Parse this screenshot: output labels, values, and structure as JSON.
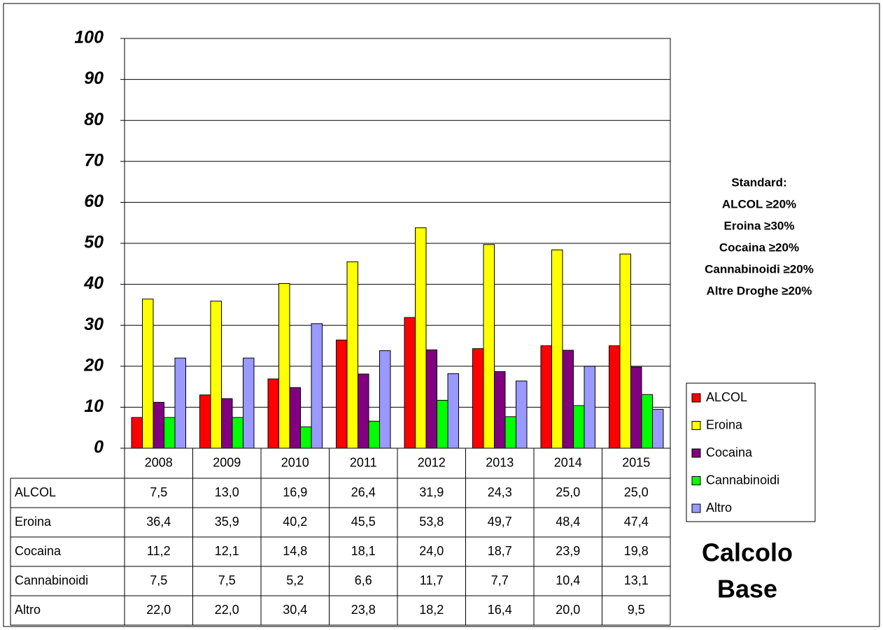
{
  "chart_data": {
    "type": "bar",
    "categories": [
      "2008",
      "2009",
      "2010",
      "2011",
      "2012",
      "2013",
      "2014",
      "2015"
    ],
    "series": [
      {
        "name": "ALCOL",
        "color": "#ff0000",
        "values": [
          7.5,
          13.0,
          16.9,
          26.4,
          31.9,
          24.3,
          25.0,
          25.0
        ],
        "value_labels": [
          "7,5",
          "13,0",
          "16,9",
          "26,4",
          "31,9",
          "24,3",
          "25,0",
          "25,0"
        ]
      },
      {
        "name": "Eroina",
        "color": "#ffff00",
        "values": [
          36.4,
          35.9,
          40.2,
          45.5,
          53.8,
          49.7,
          48.4,
          47.4
        ],
        "value_labels": [
          "36,4",
          "35,9",
          "40,2",
          "45,5",
          "53,8",
          "49,7",
          "48,4",
          "47,4"
        ]
      },
      {
        "name": "Cocaina",
        "color": "#800080",
        "values": [
          11.2,
          12.1,
          14.8,
          18.1,
          24.0,
          18.7,
          23.9,
          19.8
        ],
        "value_labels": [
          "11,2",
          "12,1",
          "14,8",
          "18,1",
          "24,0",
          "18,7",
          "23,9",
          "19,8"
        ]
      },
      {
        "name": "Cannabinoidi",
        "color": "#00ff00",
        "values": [
          7.5,
          7.5,
          5.2,
          6.6,
          11.7,
          7.7,
          10.4,
          13.1
        ],
        "value_labels": [
          "7,5",
          "7,5",
          "5,2",
          "6,6",
          "11,7",
          "7,7",
          "10,4",
          "13,1"
        ]
      },
      {
        "name": "Altro",
        "color": "#9999ff",
        "values": [
          22.0,
          22.0,
          30.4,
          23.8,
          18.2,
          16.4,
          20.0,
          9.5
        ],
        "value_labels": [
          "22,0",
          "22,0",
          "30,4",
          "23,8",
          "18,2",
          "16,4",
          "20,0",
          "9,5"
        ]
      }
    ],
    "ylim": [
      0,
      100
    ],
    "yticks": [
      0,
      10,
      20,
      30,
      40,
      50,
      60,
      70,
      80,
      90,
      100
    ],
    "grid": true,
    "legend": "right",
    "annotations": [
      "Standard:",
      "ALCOL ≥20%",
      "Eroina ≥30%",
      "Cocaina ≥20%",
      "Cannabinoidi ≥20%",
      "Altre Droghe ≥20%"
    ],
    "note": [
      "Calcolo",
      "Base"
    ]
  }
}
